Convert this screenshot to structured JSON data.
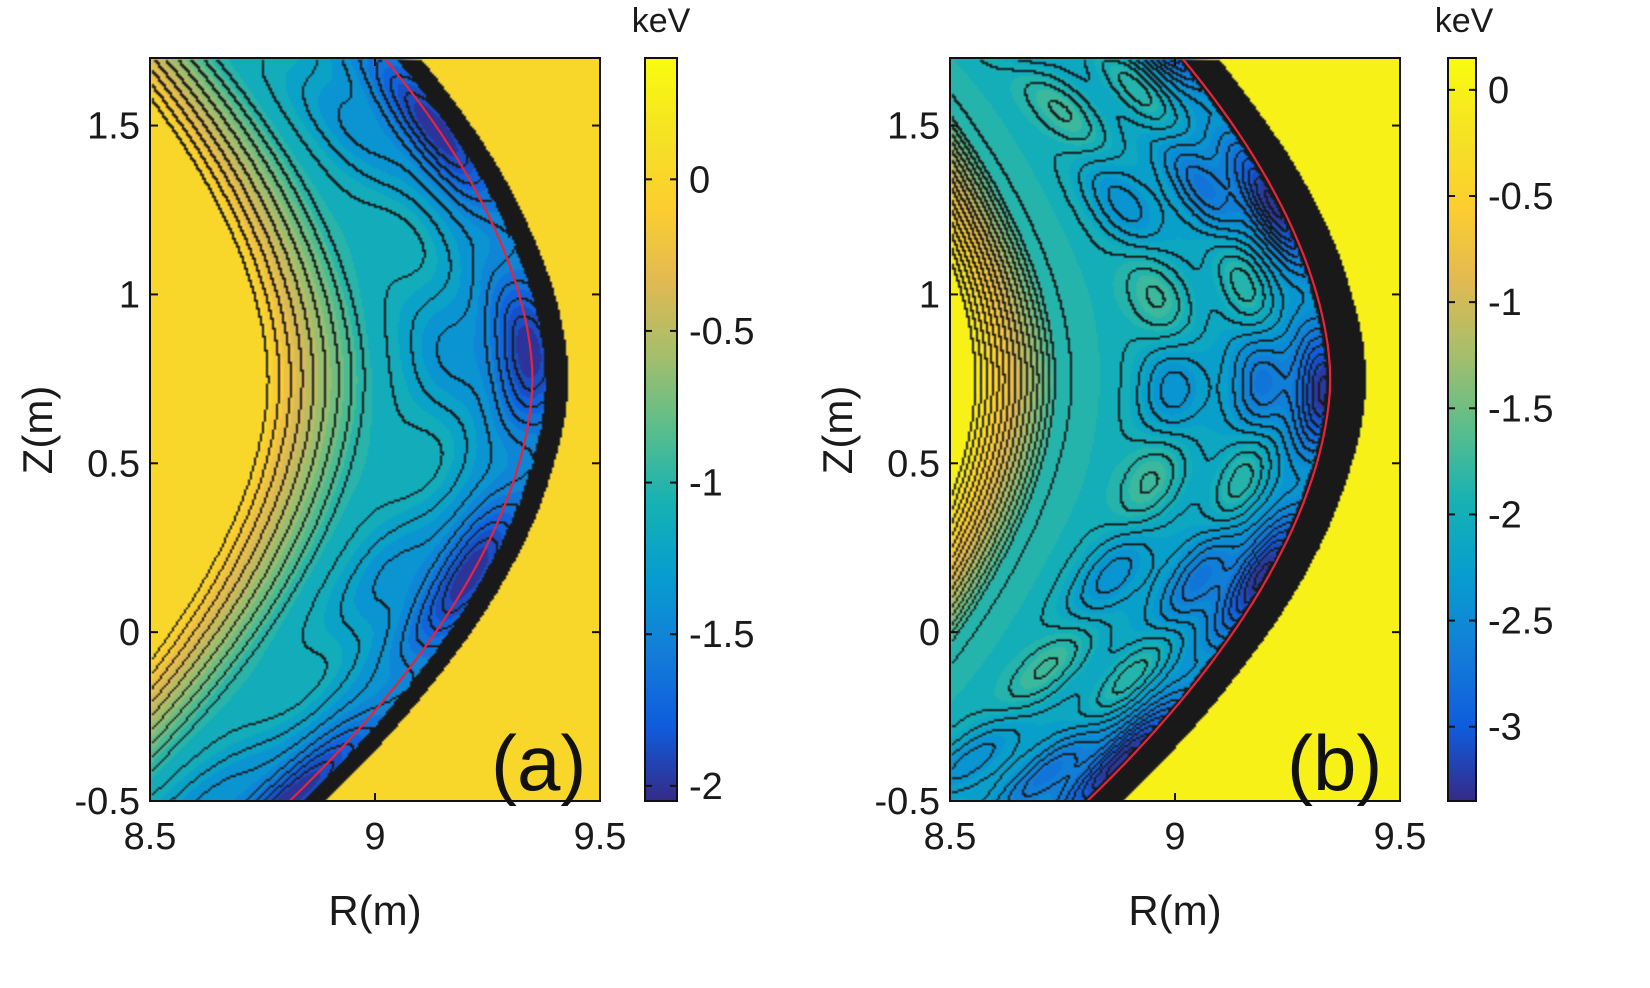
{
  "chart_data": [
    {
      "type": "heatmap",
      "panel_label": "(a)",
      "xlabel": "R(m)",
      "ylabel": "Z(m)",
      "xlim": [
        8.5,
        9.5
      ],
      "ylim": [
        -0.5,
        1.7
      ],
      "xticks": [
        8.5,
        9,
        9.5
      ],
      "yticks": [
        -0.5,
        0,
        0.5,
        1,
        1.5
      ],
      "colorbar": {
        "unit": "keV",
        "range": [
          -2.05,
          0.4
        ],
        "ticks": [
          0,
          -0.5,
          -1,
          -1.5,
          -2
        ]
      },
      "colormap": "parula",
      "background_value_keV": 0.05,
      "well_min_keV": -2.0,
      "separatrix_color": "#e8243c"
    },
    {
      "type": "heatmap",
      "panel_label": "(b)",
      "xlabel": "R(m)",
      "ylabel": "Z(m)",
      "xlim": [
        8.5,
        9.5
      ],
      "ylim": [
        -0.5,
        1.7
      ],
      "xticks": [
        8.5,
        9,
        9.5
      ],
      "yticks": [
        -0.5,
        0,
        0.5,
        1,
        1.5
      ],
      "colorbar": {
        "unit": "keV",
        "range": [
          -3.35,
          0.15
        ],
        "ticks": [
          0,
          -0.5,
          -1,
          -1.5,
          -2,
          -2.5,
          -3
        ]
      },
      "colormap": "parula",
      "background_value_keV": 0.05,
      "well_min_keV": -3.3,
      "separatrix_color": "#e8243c"
    }
  ]
}
